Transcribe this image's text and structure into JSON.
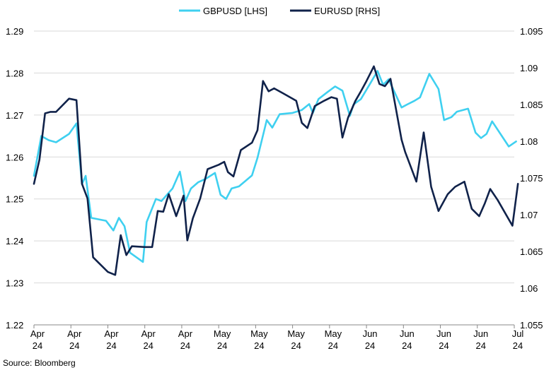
{
  "chart_data": {
    "type": "line",
    "grid": true,
    "legend_placement": "top-center",
    "x_tick_labels": [
      [
        "Apr",
        "24"
      ],
      [
        "Apr",
        "24"
      ],
      [
        "Apr",
        "24"
      ],
      [
        "Apr",
        "24"
      ],
      [
        "Apr",
        "24"
      ],
      [
        "May",
        "24"
      ],
      [
        "May",
        "24"
      ],
      [
        "May",
        "24"
      ],
      [
        "May",
        "24"
      ],
      [
        "Jun",
        "24"
      ],
      [
        "Jun",
        "24"
      ],
      [
        "Jun",
        "24"
      ],
      [
        "Jun",
        "24"
      ],
      [
        "Jul",
        "24"
      ]
    ],
    "x_range": [
      0,
      13
    ],
    "left_axis": {
      "ticks": [
        "1.22",
        "1.23",
        "1.24",
        "1.25",
        "1.26",
        "1.27",
        "1.28",
        "1.29"
      ],
      "ylim": [
        1.22,
        1.29
      ]
    },
    "right_axis": {
      "ticks": [
        "1.055",
        "1.06",
        "1.065",
        "1.07",
        "1.075",
        "1.08",
        "1.085",
        "1.09",
        "1.095"
      ],
      "ylim": [
        1.055,
        1.095
      ]
    },
    "series": [
      {
        "name": "GBPUSD [LHS]",
        "axis": "left",
        "color": "#3fd0f0",
        "x": [
          0,
          0.2,
          0.4,
          0.6,
          0.95,
          1.15,
          1.3,
          1.4,
          1.55,
          1.95,
          2.15,
          2.3,
          2.45,
          2.6,
          2.95,
          3.05,
          3.3,
          3.45,
          3.75,
          3.95,
          4.1,
          4.25,
          4.45,
          4.65,
          4.9,
          5.05,
          5.2,
          5.35,
          5.55,
          5.9,
          6.05,
          6.3,
          6.45,
          6.65,
          7.0,
          7.25,
          7.45,
          7.55,
          7.7,
          7.95,
          8.15,
          8.35,
          8.55,
          8.65,
          8.85,
          9.1,
          9.3,
          9.45,
          9.6,
          9.95,
          10.1,
          10.3,
          10.45,
          10.7,
          10.95,
          11.1,
          11.3,
          11.45,
          11.75,
          11.95,
          12.1,
          12.25,
          12.4,
          12.85,
          13.05
        ],
        "values": [
          1.2555,
          1.265,
          1.264,
          1.2635,
          1.2655,
          1.268,
          1.2535,
          1.2555,
          1.2455,
          1.2448,
          1.2425,
          1.2455,
          1.2435,
          1.2372,
          1.235,
          1.2445,
          1.25,
          1.2495,
          1.2525,
          1.2565,
          1.2495,
          1.2525,
          1.254,
          1.2548,
          1.2562,
          1.251,
          1.25,
          1.2525,
          1.253,
          1.2556,
          1.2598,
          1.2688,
          1.267,
          1.2702,
          1.2705,
          1.2712,
          1.2726,
          1.2705,
          1.2738,
          1.2755,
          1.2768,
          1.2758,
          1.2698,
          1.2725,
          1.2738,
          1.2775,
          1.2805,
          1.2772,
          1.2785,
          1.2718,
          1.2725,
          1.2734,
          1.2742,
          1.2798,
          1.2762,
          1.2688,
          1.2695,
          1.2708,
          1.2715,
          1.2658,
          1.2645,
          1.2655,
          1.2685,
          1.2625,
          1.2637
        ]
      },
      {
        "name": "EURUSD [RHS]",
        "axis": "right",
        "color": "#10224a",
        "x": [
          0,
          0.15,
          0.3,
          0.45,
          0.6,
          0.95,
          1.15,
          1.3,
          1.45,
          1.6,
          2.0,
          2.2,
          2.35,
          2.5,
          2.65,
          3.0,
          3.2,
          3.35,
          3.5,
          3.65,
          3.85,
          4.05,
          4.15,
          4.3,
          4.5,
          4.7,
          5.0,
          5.15,
          5.25,
          5.4,
          5.6,
          5.9,
          6.05,
          6.2,
          6.35,
          6.5,
          6.75,
          7.0,
          7.1,
          7.25,
          7.4,
          7.6,
          7.85,
          8.05,
          8.2,
          8.35,
          8.5,
          8.7,
          8.85,
          9.0,
          9.2,
          9.35,
          9.5,
          9.65,
          9.95,
          10.05,
          10.2,
          10.35,
          10.55,
          10.75,
          10.95,
          11.2,
          11.4,
          11.65,
          11.85,
          12.05,
          12.2,
          12.35,
          12.55,
          12.95,
          13.1
        ],
        "values": [
          1.0742,
          1.0775,
          1.0838,
          1.084,
          1.084,
          1.0858,
          1.0856,
          1.0742,
          1.0722,
          1.0642,
          1.0622,
          1.0618,
          1.0672,
          1.0645,
          1.0657,
          1.0656,
          1.0656,
          1.0705,
          1.0704,
          1.0728,
          1.0698,
          1.0726,
          1.0665,
          1.0695,
          1.0722,
          1.0762,
          1.0768,
          1.0772,
          1.0758,
          1.0752,
          1.0788,
          1.0798,
          1.0815,
          1.0882,
          1.0868,
          1.0872,
          1.0865,
          1.0858,
          1.0855,
          1.0825,
          1.0818,
          1.0848,
          1.0855,
          1.086,
          1.0858,
          1.0805,
          1.0832,
          1.0855,
          1.0868,
          1.0882,
          1.0902,
          1.0878,
          1.0875,
          1.0885,
          1.0802,
          1.0785,
          1.0765,
          1.0745,
          1.0812,
          1.0738,
          1.0705,
          1.0728,
          1.0738,
          1.0745,
          1.0708,
          1.0698,
          1.0715,
          1.0735,
          1.072,
          1.0685,
          1.0742
        ]
      }
    ]
  },
  "source_text": "Source: Bloomberg"
}
